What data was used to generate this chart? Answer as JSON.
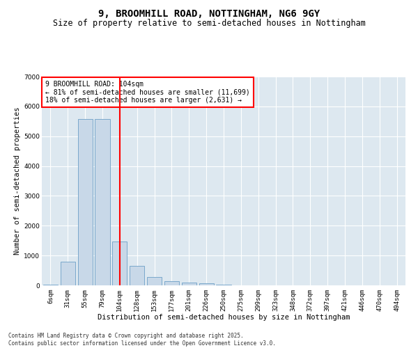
{
  "title": "9, BROOMHILL ROAD, NOTTINGHAM, NG6 9GY",
  "subtitle": "Size of property relative to semi-detached houses in Nottingham",
  "xlabel": "Distribution of semi-detached houses by size in Nottingham",
  "ylabel": "Number of semi-detached properties",
  "categories": [
    "6sqm",
    "31sqm",
    "55sqm",
    "79sqm",
    "104sqm",
    "128sqm",
    "153sqm",
    "177sqm",
    "201sqm",
    "226sqm",
    "250sqm",
    "275sqm",
    "299sqm",
    "323sqm",
    "348sqm",
    "372sqm",
    "397sqm",
    "421sqm",
    "446sqm",
    "470sqm",
    "494sqm"
  ],
  "values": [
    30,
    800,
    5580,
    5580,
    1480,
    650,
    285,
    140,
    90,
    60,
    30,
    0,
    0,
    0,
    0,
    0,
    0,
    0,
    0,
    0,
    0
  ],
  "bar_color": "#c8d8e8",
  "bar_edge_color": "#7aa8cc",
  "vline_x_index": 4,
  "vline_color": "red",
  "annotation_box_text": "9 BROOMHILL ROAD: 104sqm\n← 81% of semi-detached houses are smaller (11,699)\n18% of semi-detached houses are larger (2,631) →",
  "annotation_box_color": "red",
  "ylim": [
    0,
    7000
  ],
  "yticks": [
    0,
    1000,
    2000,
    3000,
    4000,
    5000,
    6000,
    7000
  ],
  "bg_color": "#dde8f0",
  "grid_color": "white",
  "footer_text": "Contains HM Land Registry data © Crown copyright and database right 2025.\nContains public sector information licensed under the Open Government Licence v3.0.",
  "title_fontsize": 10,
  "subtitle_fontsize": 8.5,
  "annotation_fontsize": 7,
  "axis_label_fontsize": 7.5,
  "tick_fontsize": 6.5,
  "footer_fontsize": 5.5
}
